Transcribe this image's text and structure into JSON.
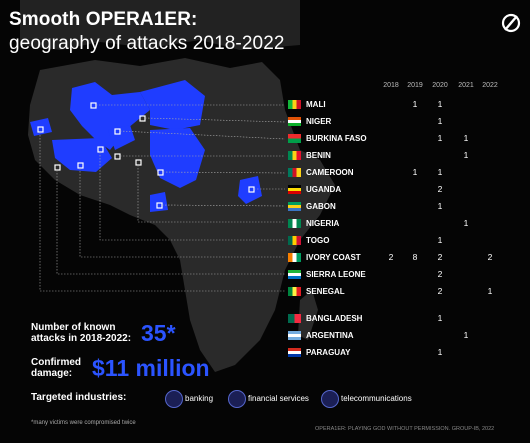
{
  "title": {
    "line1": "Smooth OPERA1ER:",
    "line2": "geography of attacks 2018-2022"
  },
  "table": {
    "years": [
      "2018",
      "2019",
      "2020",
      "2021",
      "2022"
    ],
    "rows": [
      {
        "country": "MALI",
        "flag": "mali-flag",
        "values": [
          "",
          "1",
          "1",
          "",
          ""
        ]
      },
      {
        "country": "NIGER",
        "flag": "niger-flag",
        "values": [
          "",
          "",
          "1",
          "",
          ""
        ]
      },
      {
        "country": "BURKINA FASO",
        "flag": "burkina-faso-flag",
        "values": [
          "",
          "",
          "1",
          "1",
          ""
        ]
      },
      {
        "country": "BENIN",
        "flag": "benin-flag",
        "values": [
          "",
          "",
          "",
          "1",
          ""
        ]
      },
      {
        "country": "CAMEROON",
        "flag": "cameroon-flag",
        "values": [
          "",
          "1",
          "1",
          "",
          ""
        ]
      },
      {
        "country": "UGANDA",
        "flag": "uganda-flag",
        "values": [
          "",
          "",
          "2",
          "",
          ""
        ]
      },
      {
        "country": "GABON",
        "flag": "gabon-flag",
        "values": [
          "",
          "",
          "1",
          "",
          ""
        ]
      },
      {
        "country": "NIGERIA",
        "flag": "nigeria-flag",
        "values": [
          "",
          "",
          "",
          "1",
          ""
        ]
      },
      {
        "country": "TOGO",
        "flag": "togo-flag",
        "values": [
          "",
          "",
          "1",
          "",
          ""
        ]
      },
      {
        "country": "IVORY COAST",
        "flag": "ivory-coast-flag",
        "values": [
          "2",
          "8",
          "2",
          "",
          "2"
        ]
      },
      {
        "country": "SIERRA LEONE",
        "flag": "sierra-leone-flag",
        "values": [
          "",
          "",
          "2",
          "",
          ""
        ]
      },
      {
        "country": "SENEGAL",
        "flag": "senegal-flag",
        "values": [
          "",
          "",
          "2",
          "",
          "1"
        ]
      },
      {
        "country": "BANGLADESH",
        "flag": "bangladesh-flag",
        "values": [
          "",
          "",
          "1",
          "",
          ""
        ]
      },
      {
        "country": "ARGENTINA",
        "flag": "argentina-flag",
        "values": [
          "",
          "",
          "",
          "1",
          ""
        ]
      },
      {
        "country": "PARAGUAY",
        "flag": "paraguay-flag",
        "values": [
          "",
          "",
          "1",
          "",
          ""
        ]
      }
    ]
  },
  "stats": {
    "attacks_label_1": "Number of known",
    "attacks_label_2": "attacks in 2018-2022:",
    "attacks_value": "35*",
    "damage_label_1": "Confirmed",
    "damage_label_2": "damage:",
    "damage_value": "$11 million"
  },
  "industries": {
    "label": "Targeted industries:",
    "items": [
      {
        "label": "banking",
        "icon": "bank-icon"
      },
      {
        "label": "financial services",
        "icon": "financial-services-icon"
      },
      {
        "label": "telecommunications",
        "icon": "telecommunications-icon"
      }
    ]
  },
  "footnote": "*many victims were compromised twice",
  "source": "OPERA1ER: PLAYING GOD WITHOUT PERMISSION. GROUP-IB, 2022",
  "colors": {
    "accent": "#1f3dff",
    "map_land": "#2a2a2a",
    "background": "#050505"
  }
}
